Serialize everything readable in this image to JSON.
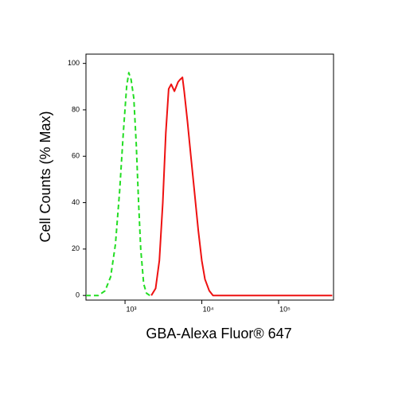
{
  "chart_data": {
    "type": "line",
    "x_label": "GBA-Alexa Fluor® 647",
    "y_label": "Cell Counts (% Max)",
    "xscale": "log",
    "xlim": [
      310,
      519000
    ],
    "ylim": [
      -2,
      104
    ],
    "xticks": [
      {
        "value": 1000,
        "label": "10³"
      },
      {
        "value": 10000,
        "label": "10⁴"
      },
      {
        "value": 100000,
        "label": "10⁵"
      }
    ],
    "yticks": [
      0,
      20,
      40,
      60,
      80,
      100
    ],
    "grid": false,
    "series": [
      {
        "color": "#22dd22",
        "dash": true,
        "x": [
          310,
          450,
          550,
          650,
          750,
          850,
          950,
          1050,
          1120,
          1200,
          1300,
          1400,
          1500,
          1600,
          1750,
          1900,
          2100
        ],
        "values": [
          0,
          0,
          2,
          8,
          22,
          45,
          70,
          90,
          96,
          93,
          85,
          65,
          40,
          20,
          5,
          1,
          0
        ]
      },
      {
        "color": "#ee1111",
        "dash": false,
        "x": [
          2200,
          2500,
          2800,
          3100,
          3400,
          3700,
          4000,
          4400,
          4900,
          5200,
          5600,
          5900,
          6500,
          7200,
          8000,
          9000,
          10000,
          11000,
          12500,
          14000,
          500000
        ],
        "values": [
          0,
          3,
          15,
          40,
          70,
          89,
          91,
          88,
          92,
          93,
          94,
          88,
          75,
          60,
          45,
          28,
          15,
          7,
          2,
          0,
          0
        ]
      }
    ]
  }
}
